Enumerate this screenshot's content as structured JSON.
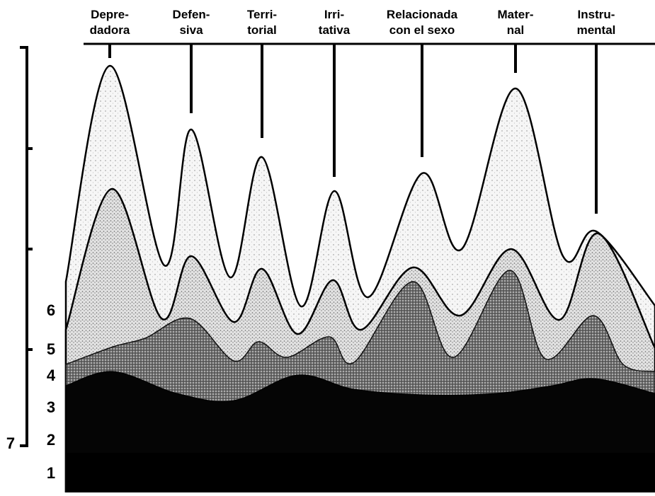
{
  "columns": [
    {
      "lines": [
        "Depre-",
        "dadora"
      ]
    },
    {
      "lines": [
        "Defen-",
        "siva"
      ]
    },
    {
      "lines": [
        "Terri-",
        "torial"
      ]
    },
    {
      "lines": [
        "Irri-",
        "tativa"
      ]
    },
    {
      "lines": [
        "Relacionada",
        "con el sexo"
      ]
    },
    {
      "lines": [
        "Mater-",
        "nal"
      ]
    },
    {
      "lines": [
        "Instru-",
        "mental"
      ]
    }
  ],
  "levels": [
    6,
    5,
    4,
    3,
    2,
    1
  ],
  "scale_label": 7
}
